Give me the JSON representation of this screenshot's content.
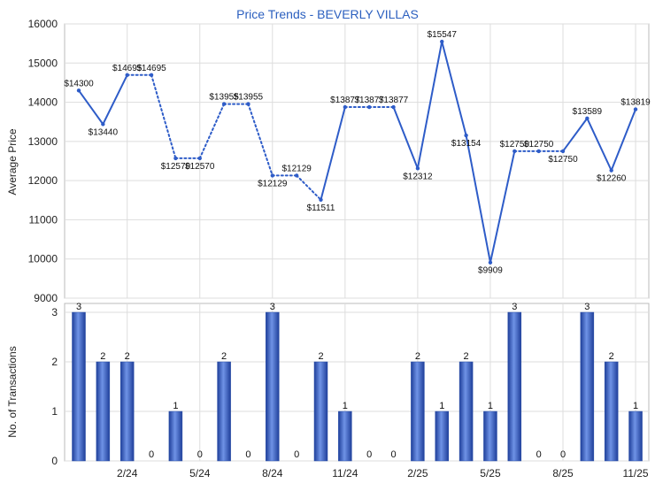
{
  "chart_data": [
    {
      "type": "line",
      "title": "Price Trends - BEVERLY VILLAS",
      "ylabel": "Average Price",
      "ylim": [
        9000,
        16000
      ],
      "yticks": [
        9000,
        10000,
        11000,
        12000,
        13000,
        14000,
        15000,
        16000
      ],
      "x_tick_labels": [
        "2/24",
        "5/24",
        "8/24",
        "11/24",
        "2/25",
        "5/25",
        "8/25",
        "11/25"
      ],
      "grid": true,
      "line_color": "#2e5cc8",
      "months": [
        "12/23",
        "1/24",
        "2/24",
        "3/24",
        "4/24",
        "5/24",
        "6/24",
        "7/24",
        "8/24",
        "9/24",
        "10/24",
        "11/24",
        "12/24",
        "1/25",
        "2/25",
        "3/25",
        "4/25",
        "5/25",
        "6/25",
        "7/25",
        "8/25",
        "9/25",
        "10/25",
        "11/25"
      ],
      "values": [
        14300,
        13440,
        14695,
        14695,
        12570,
        12570,
        13955,
        13955,
        12129,
        12129,
        11511,
        13877,
        13877,
        13877,
        12312,
        15547,
        13154,
        9909,
        12750,
        12750,
        12750,
        13589,
        12260,
        13819
      ],
      "labels": [
        "$14300",
        "$13440",
        "$14695",
        "$14695",
        "$12570",
        "$12570",
        "$13955",
        "$13955",
        "$12129",
        "$12129",
        "$11511",
        "$13877",
        "$13877",
        "$13877",
        "$12312",
        "$15547",
        "$13154",
        "$9909",
        "$12750",
        "$12750",
        "$12750",
        "$13589",
        "$12260",
        "$13819"
      ],
      "interpolated": [
        false,
        false,
        false,
        true,
        false,
        true,
        false,
        true,
        false,
        true,
        false,
        false,
        true,
        false,
        false,
        false,
        false,
        false,
        false,
        true,
        false,
        false,
        false,
        false
      ]
    },
    {
      "type": "bar",
      "ylabel": "No. of Transactions",
      "ylim": [
        0,
        3
      ],
      "yticks": [
        0,
        1,
        2,
        3
      ],
      "x_tick_labels": [
        "2/24",
        "5/24",
        "8/24",
        "11/24",
        "2/25",
        "5/25",
        "8/25",
        "11/25"
      ],
      "grid": true,
      "bar_color": "#3a62c4",
      "months": [
        "12/23",
        "1/24",
        "2/24",
        "3/24",
        "4/24",
        "5/24",
        "6/24",
        "7/24",
        "8/24",
        "9/24",
        "10/24",
        "11/24",
        "12/24",
        "1/25",
        "2/25",
        "3/25",
        "4/25",
        "5/25",
        "6/25",
        "7/25",
        "8/25",
        "9/25",
        "10/25",
        "11/25"
      ],
      "values": [
        3,
        2,
        2,
        0,
        1,
        0,
        2,
        0,
        3,
        0,
        2,
        1,
        0,
        0,
        2,
        1,
        2,
        1,
        3,
        0,
        0,
        3,
        2,
        1
      ]
    }
  ]
}
